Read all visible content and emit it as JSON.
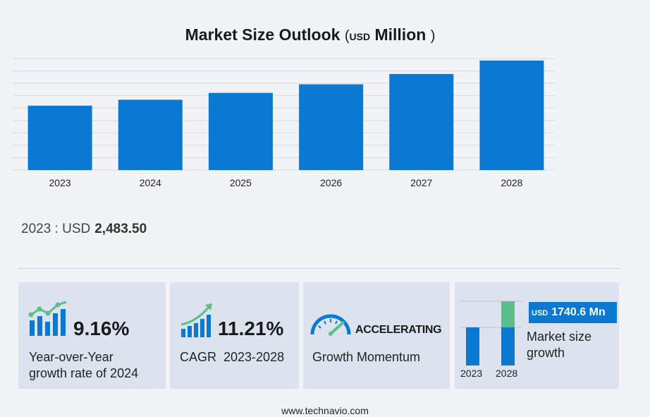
{
  "title": {
    "main": "Market Size Outlook",
    "open": "(",
    "unit_small": "USD",
    "unit": "Million",
    "close": ")"
  },
  "chart_data": {
    "type": "bar",
    "title": "Market Size Outlook (USD Million)",
    "categories": [
      "2023",
      "2024",
      "2025",
      "2026",
      "2027",
      "2028"
    ],
    "values": [
      2483.5,
      2710.9,
      2976.2,
      3306.8,
      3706.3,
      4224.1
    ],
    "ylim": [
      0,
      4300
    ],
    "grid": true,
    "bar_color": "#0b78d1",
    "grid_color": "#d8d9e0"
  },
  "base": {
    "label": "2023 : USD",
    "value": "2,483.50"
  },
  "cards": {
    "yoy": {
      "value": "9.16%",
      "caption_line1": "Year-over-Year",
      "caption_line2": "growth rate of 2024"
    },
    "cagr": {
      "value": "11.21%",
      "caption": "CAGR  2023-2028"
    },
    "momentum": {
      "status": "ACCELERATING",
      "caption": "Growth Momentum"
    },
    "growth": {
      "badge_unit": "USD",
      "badge_value": "1740.6 Mn",
      "caption_line1": "Market size",
      "caption_line2": "growth",
      "year_start": "2023",
      "year_end": "2028"
    }
  },
  "colors": {
    "accent_blue": "#0b78d1",
    "accent_green": "#5bbf8a",
    "card_bg": "#dde3ee"
  },
  "footer": "www.technavio.com"
}
